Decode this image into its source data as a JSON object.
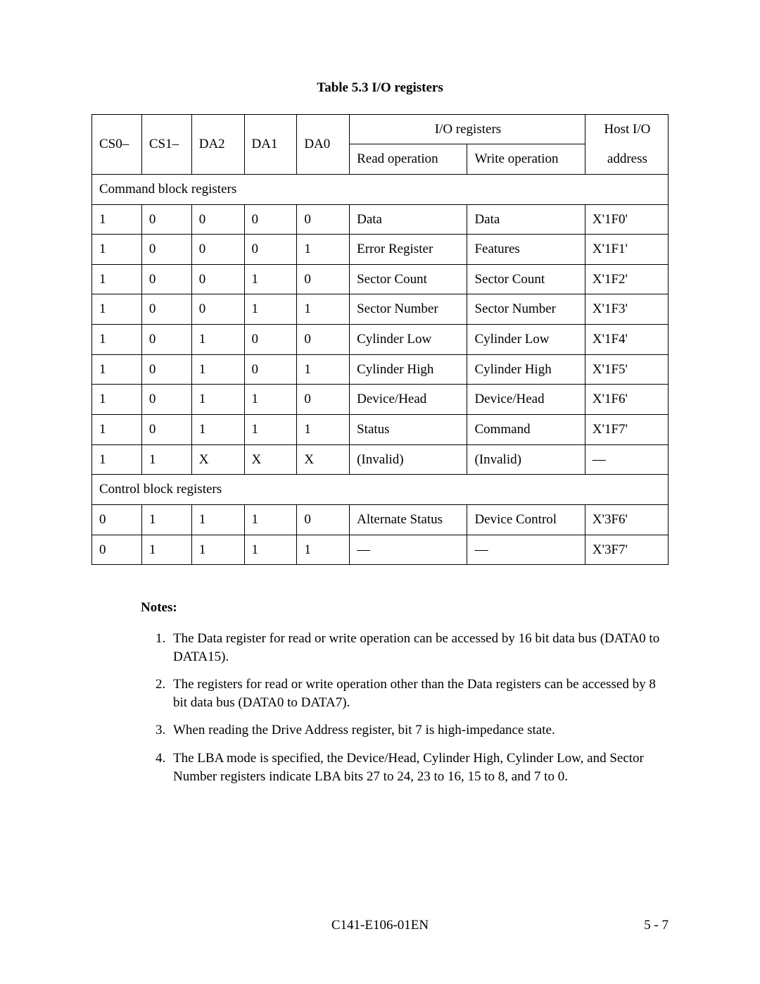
{
  "caption": "Table 5.3    I/O registers",
  "headers": {
    "cs0": "CS0–",
    "cs1": "CS1–",
    "da2": "DA2",
    "da1": "DA1",
    "da0": "DA0",
    "io_registers": "I/O registers",
    "read_op": "Read operation",
    "write_op": "Write operation",
    "host_io": "Host I/O",
    "address": "address"
  },
  "section1": "Command block registers",
  "rows1": [
    {
      "cs0": "1",
      "cs1": "0",
      "da2": "0",
      "da1": "0",
      "da0": "0",
      "read": "Data",
      "write": "Data",
      "addr": "X'1F0'"
    },
    {
      "cs0": "1",
      "cs1": "0",
      "da2": "0",
      "da1": "0",
      "da0": "1",
      "read": "Error Register",
      "write": "Features",
      "addr": "X'1F1'"
    },
    {
      "cs0": "1",
      "cs1": "0",
      "da2": "0",
      "da1": "1",
      "da0": "0",
      "read": "Sector Count",
      "write": "Sector Count",
      "addr": "X'1F2'"
    },
    {
      "cs0": "1",
      "cs1": "0",
      "da2": "0",
      "da1": "1",
      "da0": "1",
      "read": "Sector Number",
      "write": "Sector Number",
      "addr": "X'1F3'"
    },
    {
      "cs0": "1",
      "cs1": "0",
      "da2": "1",
      "da1": "0",
      "da0": "0",
      "read": "Cylinder Low",
      "write": "Cylinder Low",
      "addr": "X'1F4'"
    },
    {
      "cs0": "1",
      "cs1": "0",
      "da2": "1",
      "da1": "0",
      "da0": "1",
      "read": "Cylinder High",
      "write": "Cylinder High",
      "addr": "X'1F5'"
    },
    {
      "cs0": "1",
      "cs1": "0",
      "da2": "1",
      "da1": "1",
      "da0": "0",
      "read": "Device/Head",
      "write": "Device/Head",
      "addr": "X'1F6'"
    },
    {
      "cs0": "1",
      "cs1": "0",
      "da2": "1",
      "da1": "1",
      "da0": "1",
      "read": "Status",
      "write": "Command",
      "addr": "X'1F7'"
    },
    {
      "cs0": "1",
      "cs1": "1",
      "da2": "X",
      "da1": "X",
      "da0": "X",
      "read": "(Invalid)",
      "write": "(Invalid)",
      "addr": "—"
    }
  ],
  "section2": "Control block registers",
  "rows2": [
    {
      "cs0": "0",
      "cs1": "1",
      "da2": "1",
      "da1": "1",
      "da0": "0",
      "read": "Alternate Status",
      "write": "Device Control",
      "addr": "X'3F6'"
    },
    {
      "cs0": "0",
      "cs1": "1",
      "da2": "1",
      "da1": "1",
      "da0": "1",
      "read": "—",
      "write": "—",
      "addr": "X'3F7'"
    }
  ],
  "notes_heading": "Notes:",
  "notes": [
    "The Data register for read or write operation can be accessed by 16 bit data bus (DATA0 to DATA15).",
    "The registers for read or write operation other than the Data registers can be accessed by 8 bit data bus (DATA0 to DATA7).",
    "When reading the Drive Address register, bit 7 is high-impedance state.",
    "The LBA mode is specified, the Device/Head, Cylinder High, Cylinder Low, and Sector Number registers indicate LBA bits 27 to 24, 23 to 16, 15 to 8, and 7 to 0."
  ],
  "footer_doc": "C141-E106-01EN",
  "footer_page": "5 - 7"
}
